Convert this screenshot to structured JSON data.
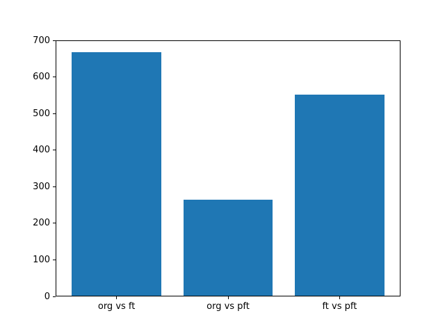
{
  "figure": {
    "background": "#ffffff",
    "spine_color": "#000000",
    "tick_label_color": "#000000"
  },
  "chart_data": {
    "type": "bar",
    "categories": [
      "org vs ft",
      "org vs pft",
      "ft vs pft"
    ],
    "values": [
      670,
      264,
      552
    ],
    "ylim": [
      0,
      700
    ],
    "yticks": [
      0,
      100,
      200,
      300,
      400,
      500,
      600,
      700
    ],
    "bar_color": "#1f77b4",
    "grid": false,
    "legend": null,
    "orientation": "vertical"
  }
}
